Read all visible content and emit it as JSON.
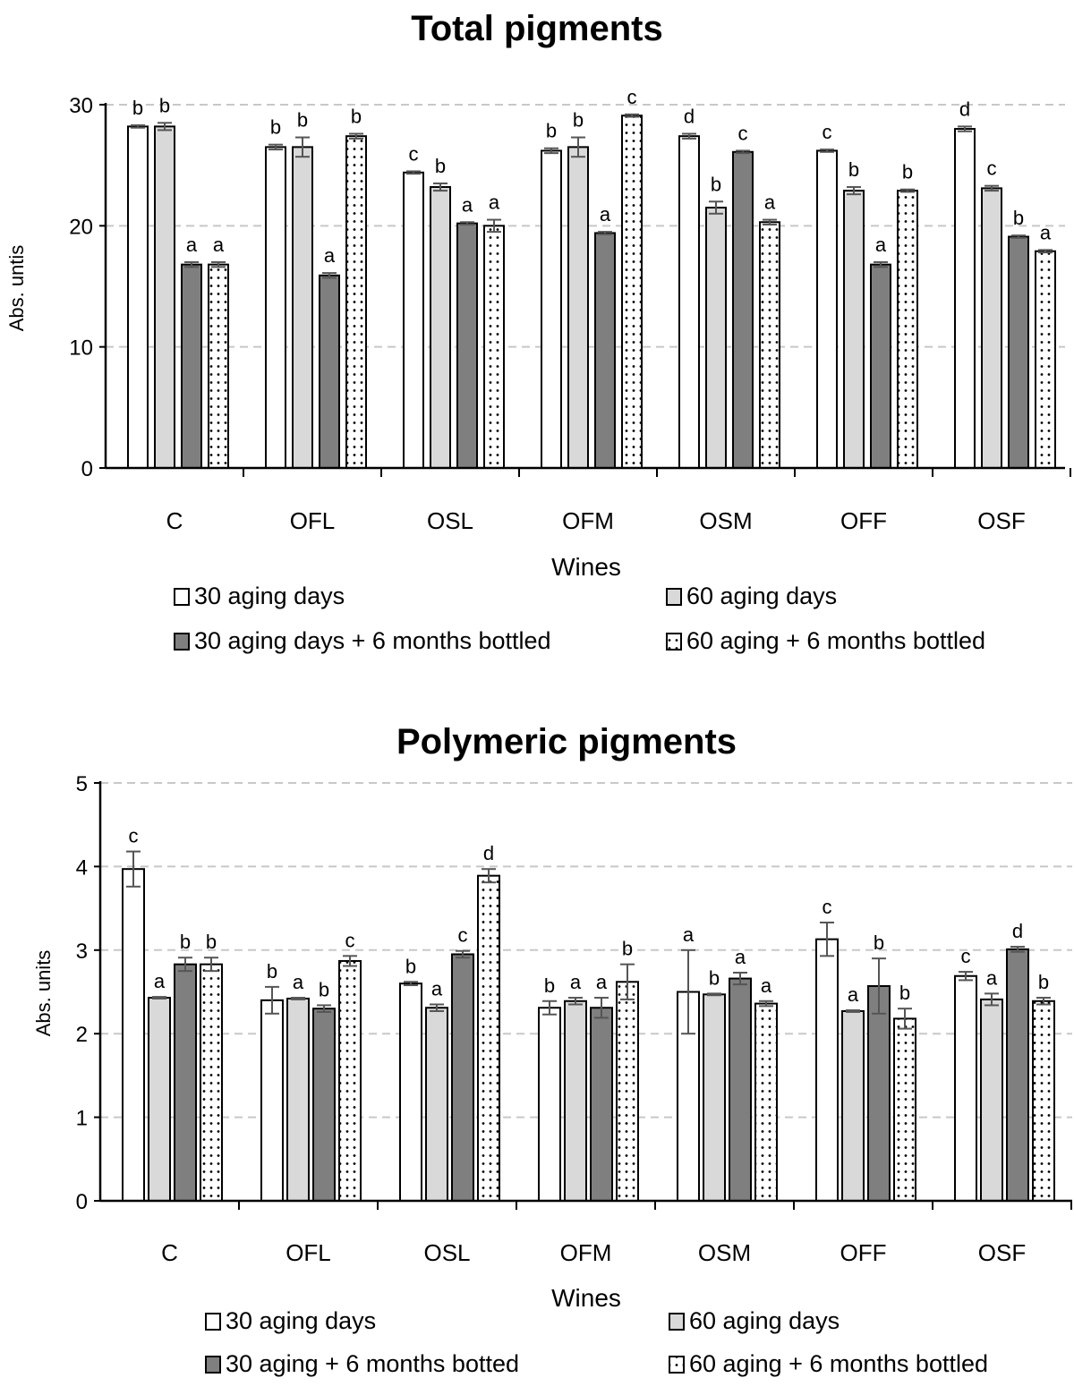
{
  "chart_data": [
    {
      "type": "bar",
      "title": "Total pigments",
      "xlabel": "Wines",
      "ylabel": "Abs. untis",
      "ylim": [
        0,
        30
      ],
      "yticks": [
        0,
        10,
        20,
        30
      ],
      "grid": true,
      "legend_position": "bottom",
      "categories": [
        "C",
        "OFL",
        "OSL",
        "OFM",
        "OSM",
        "OFF",
        "OSF"
      ],
      "series": [
        {
          "name": "30 aging days",
          "fill": "#ffffff",
          "pattern": "none",
          "values": [
            28.2,
            26.5,
            24.4,
            26.2,
            27.4,
            26.2,
            28.0
          ],
          "errors": [
            0.1,
            0.2,
            0.1,
            0.2,
            0.2,
            0.1,
            0.2
          ],
          "letters": [
            "b",
            "b",
            "c",
            "b",
            "d",
            "c",
            "d"
          ]
        },
        {
          "name": "60 aging days",
          "fill": "#d9d9d9",
          "pattern": "none",
          "values": [
            28.2,
            26.5,
            23.2,
            26.5,
            21.5,
            22.9,
            23.1
          ],
          "errors": [
            0.3,
            0.8,
            0.3,
            0.8,
            0.5,
            0.3,
            0.2
          ],
          "letters": [
            "b",
            "b",
            "b",
            "b",
            "b",
            "b",
            "c"
          ]
        },
        {
          "name": "30 aging days + 6 months bottled",
          "fill": "#7f7f7f",
          "pattern": "none",
          "values": [
            16.8,
            15.9,
            20.2,
            19.4,
            26.1,
            16.8,
            19.1
          ],
          "errors": [
            0.2,
            0.2,
            0.1,
            0.1,
            0.1,
            0.2,
            0.1
          ],
          "letters": [
            "a",
            "a",
            "a",
            "a",
            "c",
            "a",
            "b"
          ]
        },
        {
          "name": "60 aging + 6 months bottled",
          "fill": "#ffffff",
          "pattern": "dots",
          "values": [
            16.8,
            27.4,
            20.0,
            29.1,
            20.3,
            22.9,
            17.9
          ],
          "errors": [
            0.2,
            0.2,
            0.5,
            0.1,
            0.2,
            0.1,
            0.1
          ],
          "letters": [
            "a",
            "b",
            "a",
            "c",
            "a",
            "b",
            "a"
          ]
        }
      ]
    },
    {
      "type": "bar",
      "title": "Polymeric pigments",
      "xlabel": "Wines",
      "ylabel": "Abs. units",
      "ylim": [
        0,
        5
      ],
      "yticks": [
        0,
        1,
        2,
        3,
        4,
        5
      ],
      "grid": true,
      "legend_position": "bottom",
      "categories": [
        "C",
        "OFL",
        "OSL",
        "OFM",
        "OSM",
        "OFF",
        "OSF"
      ],
      "series": [
        {
          "name": "30 aging days",
          "fill": "#ffffff",
          "pattern": "none",
          "values": [
            3.97,
            2.4,
            2.6,
            2.31,
            2.5,
            3.13,
            2.69
          ],
          "errors": [
            0.21,
            0.16,
            0.02,
            0.08,
            0.5,
            0.2,
            0.05
          ],
          "letters": [
            "c",
            "b",
            "b",
            "b",
            "a",
            "c",
            "c"
          ]
        },
        {
          "name": "60 aging days",
          "fill": "#d9d9d9",
          "pattern": "none",
          "values": [
            2.43,
            2.42,
            2.31,
            2.39,
            2.47,
            2.27,
            2.41
          ],
          "errors": [
            0.01,
            0.01,
            0.04,
            0.04,
            0.01,
            0.01,
            0.07
          ],
          "letters": [
            "a",
            "a",
            "a",
            "a",
            "b",
            "a",
            "a"
          ]
        },
        {
          "name": "30 aging + 6 months botted",
          "fill": "#7f7f7f",
          "pattern": "none",
          "values": [
            2.83,
            2.3,
            2.95,
            2.31,
            2.66,
            2.57,
            3.01
          ],
          "errors": [
            0.08,
            0.04,
            0.04,
            0.12,
            0.07,
            0.33,
            0.03
          ],
          "letters": [
            "b",
            "b",
            "c",
            "a",
            "a",
            "b",
            "d"
          ]
        },
        {
          "name": "60 aging + 6 months bottled",
          "fill": "#ffffff",
          "pattern": "dots",
          "values": [
            2.83,
            2.87,
            3.89,
            2.62,
            2.36,
            2.18,
            2.39
          ],
          "errors": [
            0.08,
            0.06,
            0.08,
            0.21,
            0.03,
            0.12,
            0.04
          ],
          "letters": [
            "b",
            "c",
            "d",
            "b",
            "a",
            "b",
            "b"
          ]
        }
      ]
    }
  ]
}
